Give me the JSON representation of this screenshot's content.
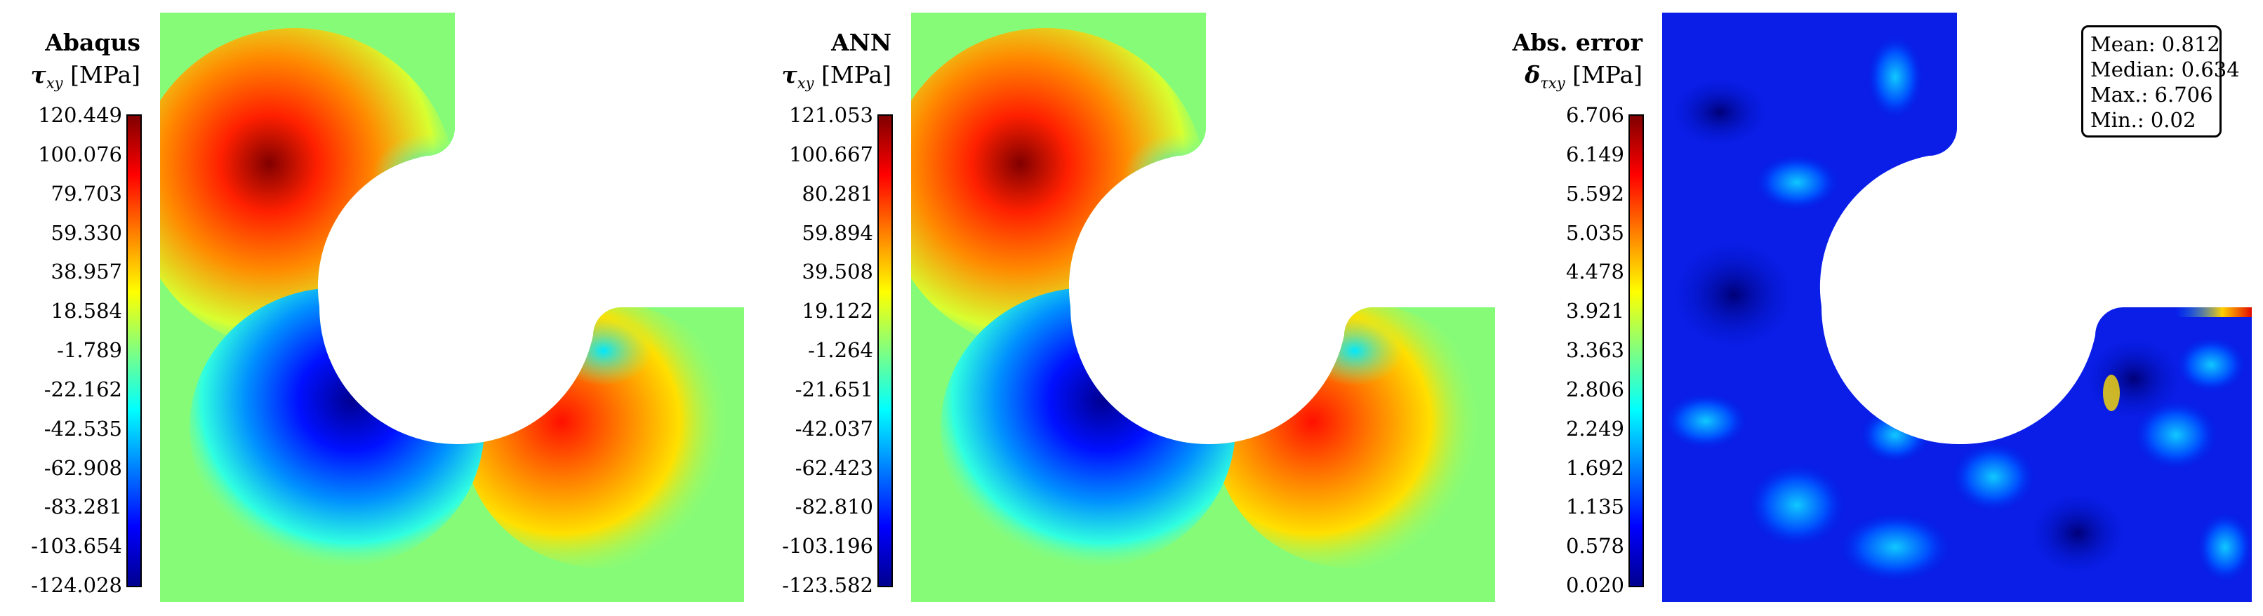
{
  "panels": [
    {
      "title": "Abaqus",
      "quantity_symbol": "τ",
      "quantity_subscript": "xy",
      "unit": "[MPa]",
      "ticks": [
        "120.449",
        "100.076",
        "79.703",
        "59.330",
        "38.957",
        "18.584",
        "-1.789",
        "-22.162",
        "-42.535",
        "-62.908",
        "-83.281",
        "-103.654",
        "-124.028"
      ]
    },
    {
      "title": "ANN",
      "quantity_symbol": "τ",
      "quantity_subscript": "xy",
      "unit": "[MPa]",
      "ticks": [
        "121.053",
        "100.667",
        "80.281",
        "59.894",
        "39.508",
        "19.122",
        "-1.264",
        "-21.651",
        "-42.037",
        "-62.423",
        "-82.810",
        "-103.196",
        "-123.582"
      ]
    },
    {
      "title": "Abs. error",
      "quantity_symbol": "δ",
      "quantity_subscript": "τxy",
      "unit": "[MPa]",
      "ticks": [
        "6.706",
        "6.149",
        "5.592",
        "5.035",
        "4.478",
        "3.921",
        "3.363",
        "2.806",
        "2.249",
        "1.692",
        "1.135",
        "0.578",
        "0.020"
      ]
    }
  ],
  "stats": {
    "mean": "Mean: 0.812",
    "median": "Median: 0.634",
    "max": "Max.: 6.706",
    "min": "Min.: 0.02"
  },
  "colors": {
    "jet": [
      "#00008f",
      "#0000ff",
      "#0080ff",
      "#00ffff",
      "#80ff80",
      "#ffff00",
      "#ff8000",
      "#ff0000",
      "#800000"
    ]
  }
}
